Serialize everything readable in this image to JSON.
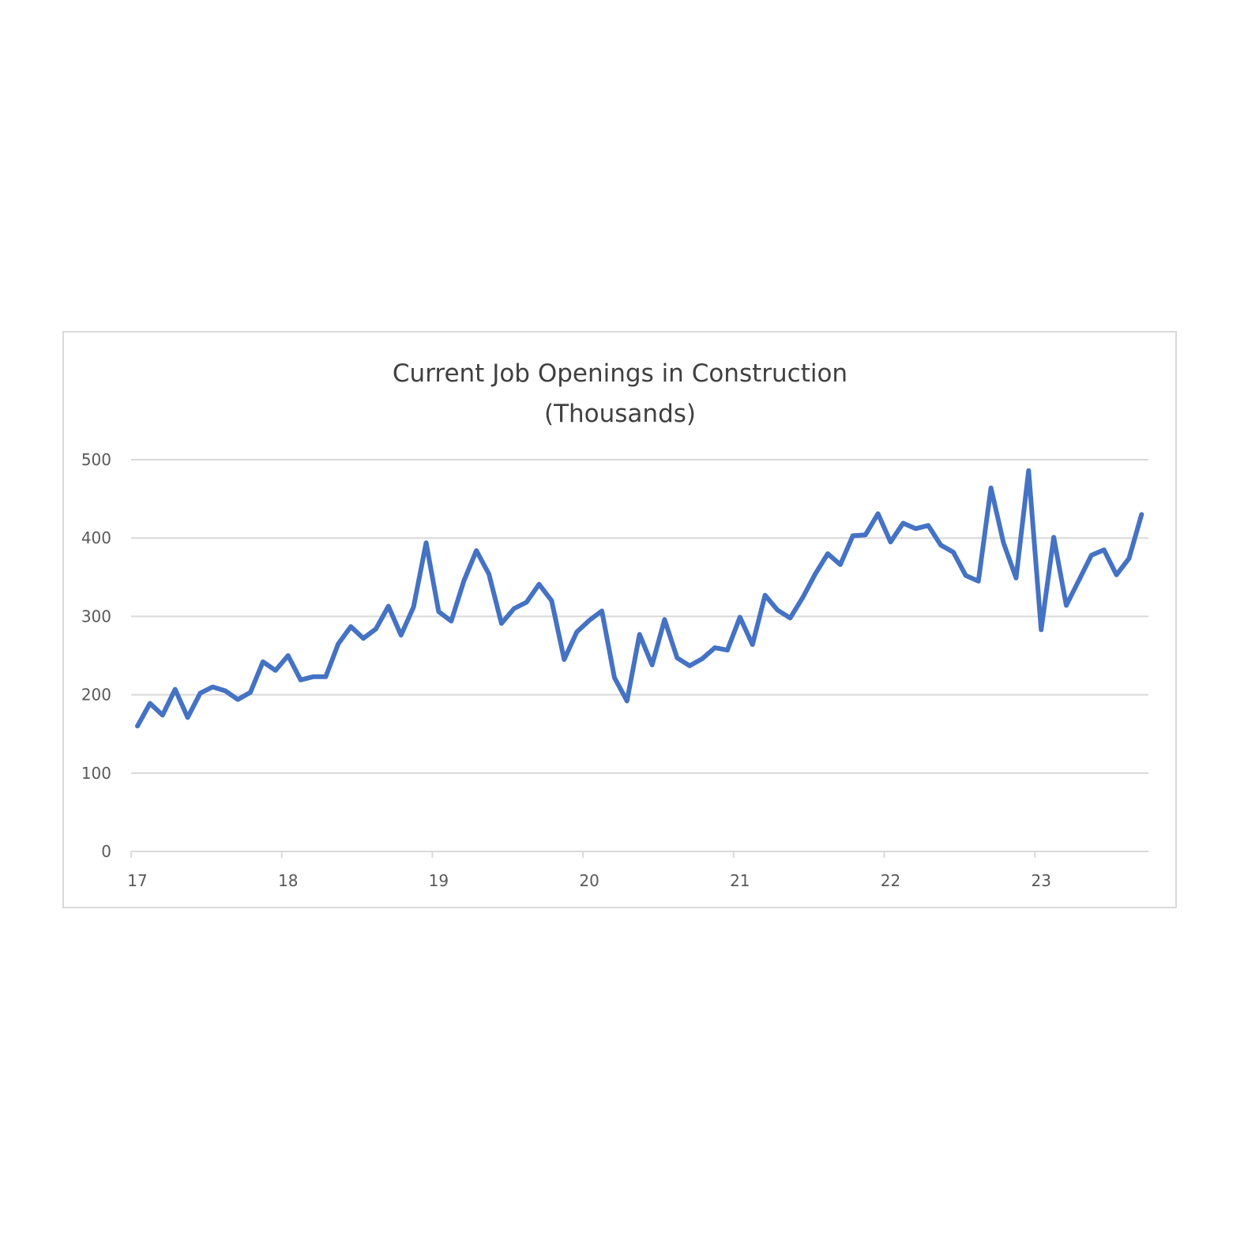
{
  "chart_data": {
    "type": "line",
    "title": "Current Job Openings in Construction",
    "subtitle": "(Thousands)",
    "xlabel": "",
    "ylabel": "",
    "ylim": [
      0,
      500
    ],
    "y_ticks": [
      "0",
      "100",
      "200",
      "300",
      "400",
      "500"
    ],
    "x_ticks": [
      "17",
      "18",
      "19",
      "20",
      "21",
      "22",
      "23"
    ],
    "grid": true,
    "legend": "none",
    "series": [
      {
        "name": "Job Openings",
        "color": "#4472C4",
        "values": [
          160,
          189,
          174,
          207,
          171,
          202,
          210,
          205,
          194,
          203,
          242,
          231,
          250,
          219,
          223,
          223,
          265,
          287,
          272,
          284,
          313,
          276,
          312,
          394,
          306,
          294,
          345,
          384,
          354,
          291,
          310,
          318,
          341,
          320,
          245,
          280,
          295,
          307,
          222,
          192,
          277,
          238,
          296,
          247,
          237,
          246,
          260,
          257,
          299,
          264,
          327,
          308,
          298,
          324,
          354,
          380,
          366,
          403,
          404,
          431,
          395,
          419,
          412,
          416,
          391,
          382,
          352,
          345,
          464,
          394,
          349,
          486,
          283,
          401,
          314,
          346,
          378,
          385,
          353,
          374,
          430
        ]
      }
    ]
  },
  "colors": {
    "line": "#4472C4",
    "grid": "#d9d9d9",
    "frame": "#d9d9d9",
    "text": "#595959"
  }
}
